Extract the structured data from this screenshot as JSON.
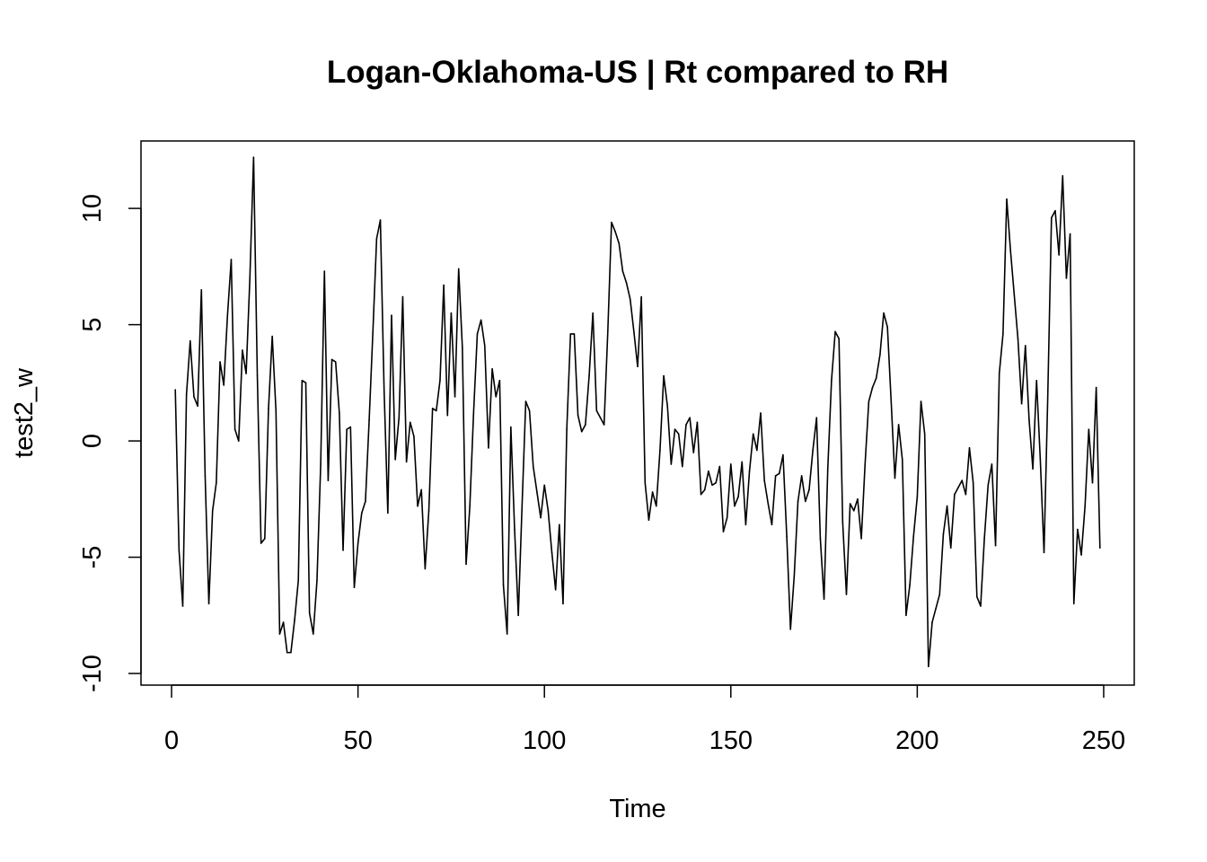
{
  "chart_data": {
    "type": "line",
    "title": "Logan-Oklahoma-US | Rt compared to RH",
    "xlabel": "Time",
    "ylabel": "test2_w",
    "xlim": [
      1,
      248
    ],
    "ylim": [
      -10,
      12
    ],
    "x_ticks": [
      0,
      50,
      100,
      150,
      200,
      250
    ],
    "y_ticks": [
      -10,
      -5,
      0,
      5,
      10
    ],
    "grid": false,
    "legend": "none",
    "line_color": "#000000",
    "series": [
      {
        "x_start": 1,
        "values": [
          2.2,
          -4.7,
          -7.1,
          2.0,
          4.3,
          1.9,
          1.5,
          6.5,
          -1.5,
          -7.0,
          -3.0,
          -1.8,
          3.4,
          2.4,
          5.4,
          7.8,
          0.5,
          0.0,
          3.9,
          2.9,
          7.0,
          12.2,
          2.8,
          -4.4,
          -4.2,
          1.4,
          4.5,
          1.3,
          -8.3,
          -7.8,
          -9.1,
          -9.1,
          -7.7,
          -6.0,
          2.6,
          2.5,
          -7.4,
          -8.3,
          -6.0,
          -1.0,
          7.3,
          -1.7,
          3.5,
          3.4,
          1.2,
          -4.7,
          0.5,
          0.6,
          -6.3,
          -4.4,
          -3.1,
          -2.6,
          0.9,
          4.7,
          8.7,
          9.5,
          2.2,
          -3.1,
          5.4,
          -0.8,
          1.0,
          6.2,
          -0.9,
          0.8,
          0.2,
          -2.8,
          -2.1,
          -5.5,
          -3.0,
          1.4,
          1.3,
          2.6,
          6.7,
          1.1,
          5.5,
          1.9,
          7.4,
          4.0,
          -5.3,
          -2.8,
          1.2,
          4.6,
          5.2,
          4.1,
          -0.3,
          3.1,
          1.9,
          2.6,
          -6.2,
          -8.3,
          0.6,
          -3.8,
          -7.5,
          -2.8,
          1.7,
          1.3,
          -1.1,
          -2.2,
          -3.3,
          -1.9,
          -3.0,
          -4.8,
          -6.4,
          -3.6,
          -7.0,
          0.5,
          4.6,
          4.6,
          1.1,
          0.4,
          0.7,
          2.8,
          5.5,
          1.3,
          1.0,
          0.7,
          4.7,
          9.4,
          9.0,
          8.5,
          7.3,
          6.8,
          6.1,
          4.7,
          3.2,
          6.2,
          -1.8,
          -3.4,
          -2.2,
          -2.8,
          -0.4,
          2.8,
          1.5,
          -1.0,
          0.5,
          0.3,
          -1.1,
          0.7,
          1.0,
          -0.5,
          0.8,
          -2.3,
          -2.1,
          -1.3,
          -1.9,
          -1.8,
          -1.1,
          -3.9,
          -3.3,
          -1.0,
          -2.8,
          -2.4,
          -0.9,
          -3.6,
          -1.3,
          0.3,
          -0.4,
          1.2,
          -1.7,
          -2.7,
          -3.6,
          -1.5,
          -1.4,
          -0.6,
          -4.1,
          -8.1,
          -5.8,
          -2.6,
          -1.5,
          -2.6,
          -2.1,
          -0.4,
          1.0,
          -4.2,
          -6.8,
          -1.2,
          2.6,
          4.7,
          4.4,
          -3.5,
          -6.6,
          -2.7,
          -3.0,
          -2.5,
          -4.2,
          -1.0,
          1.7,
          2.3,
          2.7,
          3.7,
          5.5,
          4.9,
          1.7,
          -1.6,
          0.7,
          -0.8,
          -7.5,
          -6.2,
          -4.1,
          -2.4,
          1.7,
          0.3,
          -9.7,
          -7.8,
          -7.2,
          -6.6,
          -4.0,
          -2.8,
          -4.6,
          -2.3,
          -2.0,
          -1.7,
          -2.3,
          -0.3,
          -1.8,
          -6.7,
          -7.1,
          -4.2,
          -1.9,
          -1.0,
          -4.5,
          2.9,
          4.6,
          10.4,
          8.2,
          6.3,
          4.4,
          1.6,
          4.1,
          0.9,
          -1.2,
          2.6,
          -0.8,
          -4.8,
          1.9,
          9.6,
          9.9,
          8.0,
          11.4,
          7.0,
          8.9,
          -7.0,
          -3.8,
          -4.9,
          -2.8,
          0.5,
          -1.8,
          2.3,
          -4.6
        ]
      }
    ]
  }
}
